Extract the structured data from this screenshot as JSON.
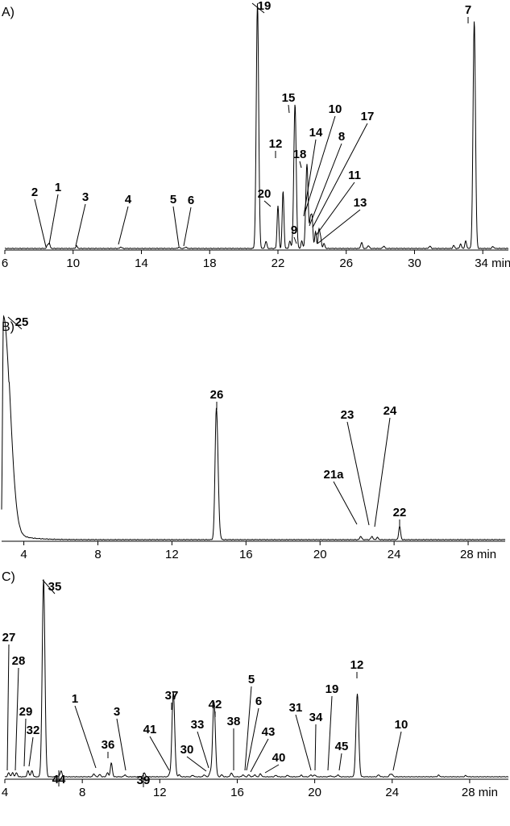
{
  "chart_data": [
    {
      "type": "line",
      "panel": "A)",
      "x_unit": "min",
      "xlim": [
        6,
        35.5
      ],
      "xticks": [
        6,
        10,
        14,
        18,
        22,
        26,
        30,
        34
      ],
      "peaks": [
        {
          "label": "2",
          "x": 8.5,
          "h": 0.012
        },
        {
          "label": "1",
          "x": 8.6,
          "h": 0.02
        },
        {
          "label": "3",
          "x": 10.2,
          "h": 0.01
        },
        {
          "label": "4",
          "x": 12.8,
          "h": 0.006
        },
        {
          "label": "5",
          "x": 16.2,
          "h": 0.006
        },
        {
          "label": "6",
          "x": 16.6,
          "h": 0.006
        },
        {
          "label": "20",
          "x": 22.0,
          "h": 0.175
        },
        {
          "label": "12",
          "x": 22.3,
          "h": 0.235
        },
        {
          "label": "15",
          "x": 23.0,
          "h": 0.59
        },
        {
          "label": "9",
          "x": 23.4,
          "h": 0.03
        },
        {
          "label": "18",
          "x": 23.7,
          "h": 0.345
        },
        {
          "label": "14",
          "x": 23.9,
          "h": 0.11
        },
        {
          "label": "10",
          "x": 24.0,
          "h": 0.12
        },
        {
          "label": "8",
          "x": 24.2,
          "h": 0.07
        },
        {
          "label": "17",
          "x": 24.4,
          "h": 0.075
        },
        {
          "label": "11",
          "x": 24.5,
          "h": 0.04
        },
        {
          "label": "13",
          "x": 24.7,
          "h": 0.02
        },
        {
          "label": "19",
          "x": 20.8,
          "h": 1.0
        },
        {
          "label": "7",
          "x": 33.5,
          "h": 0.93
        }
      ],
      "minor_peaks": [
        {
          "x": 21.3,
          "h": 0.03
        },
        {
          "x": 22.7,
          "h": 0.03
        },
        {
          "x": 26.9,
          "h": 0.025
        },
        {
          "x": 27.3,
          "h": 0.012
        },
        {
          "x": 28.2,
          "h": 0.01
        },
        {
          "x": 30.9,
          "h": 0.01
        },
        {
          "x": 32.3,
          "h": 0.012
        },
        {
          "x": 32.7,
          "h": 0.018
        },
        {
          "x": 33.0,
          "h": 0.03
        },
        {
          "x": 34.6,
          "h": 0.008
        }
      ]
    },
    {
      "type": "line",
      "panel": "B)",
      "x_unit": "min",
      "xlim": [
        2.8,
        30
      ],
      "xticks": [
        4,
        8,
        12,
        16,
        20,
        24,
        28
      ],
      "peaks": [
        {
          "label": "25",
          "x": 2.9,
          "h": 1.0
        },
        {
          "label": "26",
          "x": 14.4,
          "h": 0.59
        },
        {
          "label": "21a",
          "x": 22.2,
          "h": 0.015
        },
        {
          "label": "23",
          "x": 22.8,
          "h": 0.015
        },
        {
          "label": "24",
          "x": 23.1,
          "h": 0.01
        },
        {
          "label": "22",
          "x": 24.3,
          "h": 0.06
        }
      ]
    },
    {
      "type": "line",
      "panel": "C)",
      "x_unit": "min",
      "xlim": [
        4,
        30
      ],
      "xticks": [
        4,
        8,
        12,
        16,
        20,
        24,
        28
      ],
      "peaks": [
        {
          "label": "35",
          "x": 6.0,
          "h": 1.0
        },
        {
          "label": "27",
          "x": 4.4,
          "h": 0.02
        },
        {
          "label": "28",
          "x": 4.6,
          "h": 0.02
        },
        {
          "label": "29",
          "x": 5.2,
          "h": 0.03
        },
        {
          "label": "32",
          "x": 5.4,
          "h": 0.03
        },
        {
          "label": "44",
          "x": 6.9,
          "h": 0.03
        },
        {
          "label": "1",
          "x": 8.6,
          "h": 0.015
        },
        {
          "label": "36",
          "x": 9.5,
          "h": 0.07
        },
        {
          "label": "3",
          "x": 10.2,
          "h": 0.01
        },
        {
          "label": "39",
          "x": 11.2,
          "h": 0.02
        },
        {
          "label": "41",
          "x": 12.5,
          "h": 0.01
        },
        {
          "label": "37",
          "x": 12.7,
          "h": 0.43
        },
        {
          "label": "30",
          "x": 14.3,
          "h": 0.01
        },
        {
          "label": "33",
          "x": 14.6,
          "h": 0.02
        },
        {
          "label": "42",
          "x": 14.8,
          "h": 0.38
        },
        {
          "label": "38",
          "x": 15.7,
          "h": 0.02
        },
        {
          "label": "5",
          "x": 16.3,
          "h": 0.01
        },
        {
          "label": "6",
          "x": 16.6,
          "h": 0.01
        },
        {
          "label": "43",
          "x": 16.9,
          "h": 0.01
        },
        {
          "label": "40",
          "x": 17.2,
          "h": 0.015
        },
        {
          "label": "31",
          "x": 19.8,
          "h": 0.01
        },
        {
          "label": "34",
          "x": 20.0,
          "h": 0.01
        },
        {
          "label": "19",
          "x": 20.8,
          "h": 0.005
        },
        {
          "label": "45",
          "x": 21.2,
          "h": 0.01
        },
        {
          "label": "12",
          "x": 22.2,
          "h": 0.42
        },
        {
          "label": "10",
          "x": 24.0,
          "h": 0.01
        }
      ],
      "minor_peaks": [
        {
          "x": 4.2,
          "h": 0.02
        },
        {
          "x": 8.9,
          "h": 0.012
        },
        {
          "x": 9.3,
          "h": 0.02
        },
        {
          "x": 13.0,
          "h": 0.01
        },
        {
          "x": 13.7,
          "h": 0.008
        },
        {
          "x": 15.2,
          "h": 0.01
        },
        {
          "x": 18.0,
          "h": 0.008
        },
        {
          "x": 18.6,
          "h": 0.008
        },
        {
          "x": 19.3,
          "h": 0.008
        },
        {
          "x": 23.3,
          "h": 0.01
        },
        {
          "x": 23.9,
          "h": 0.012
        },
        {
          "x": 26.4,
          "h": 0.008
        },
        {
          "x": 27.8,
          "h": 0.006
        }
      ]
    }
  ]
}
